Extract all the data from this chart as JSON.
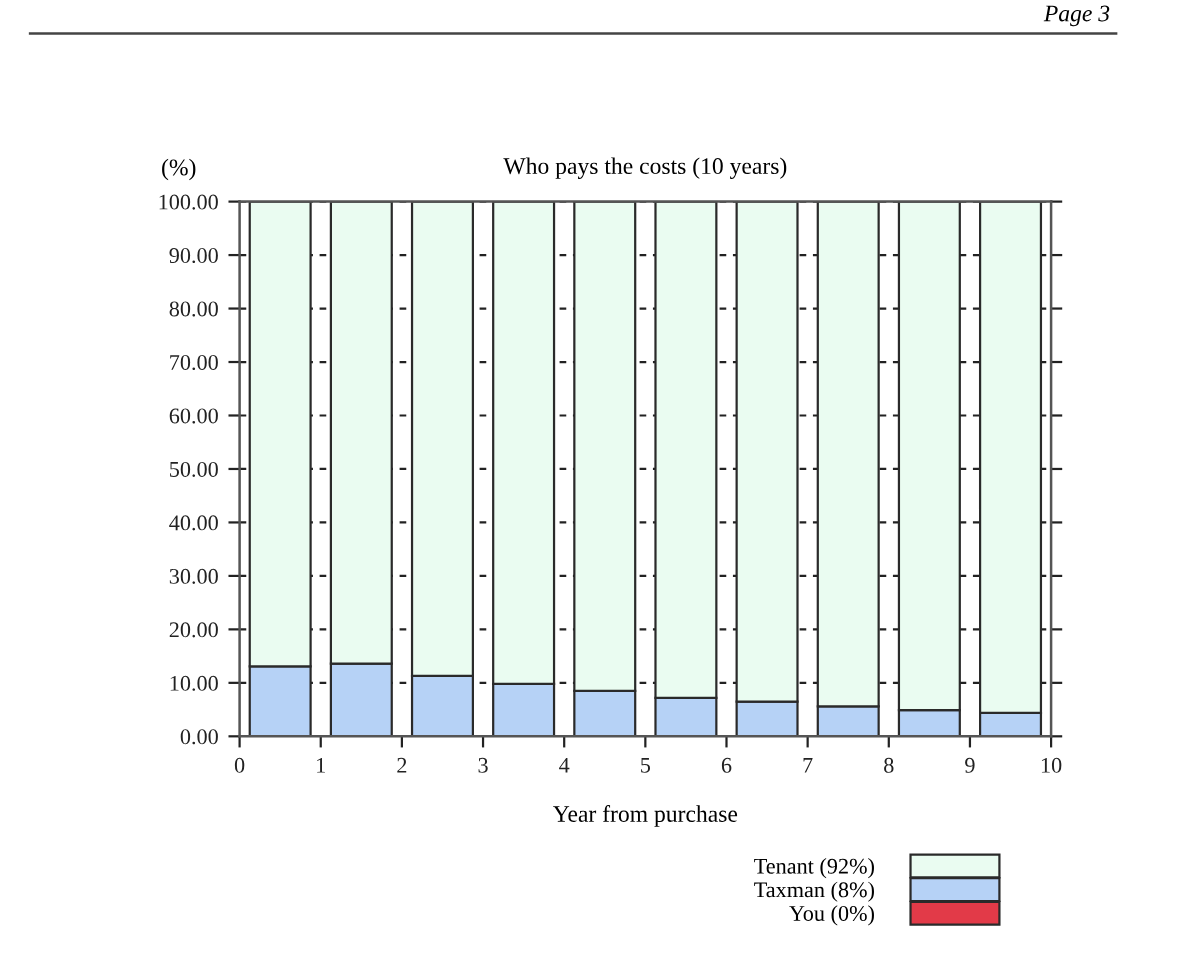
{
  "chart_data": {
    "type": "bar",
    "title": "Who pays the costs (10 years)",
    "xlabel": "Year from purchase",
    "ylabel": "(%)",
    "annotations": [
      "Page 3"
    ],
    "x": [
      0.5,
      1.5,
      2.5,
      3.5,
      4.5,
      5.5,
      6.5,
      7.5,
      8.5,
      9.5
    ],
    "stacked": true,
    "series": [
      {
        "name": "You (0%)",
        "color": "#e23a48",
        "values": [
          0,
          0,
          0,
          0,
          0,
          0,
          0,
          0,
          0,
          0
        ]
      },
      {
        "name": "Taxman (8%)",
        "color": "#b6d2f6",
        "values": [
          13.1,
          13.6,
          11.3,
          9.8,
          8.5,
          7.2,
          6.5,
          5.6,
          4.9,
          4.4
        ]
      },
      {
        "name": "Tenant (92%)",
        "color": "#eafcf1",
        "values": [
          86.9,
          86.4,
          88.7,
          90.2,
          91.5,
          92.8,
          93.5,
          94.4,
          95.1,
          95.6
        ]
      }
    ],
    "xlim": [
      0,
      10
    ],
    "xticks": [
      0,
      1,
      2,
      3,
      4,
      5,
      6,
      7,
      8,
      9,
      10
    ],
    "ylim": [
      0,
      100
    ],
    "yticks": [
      {
        "value": 0,
        "label": "0.00"
      },
      {
        "value": 10,
        "label": "10.00"
      },
      {
        "value": 20,
        "label": "20.00"
      },
      {
        "value": 30,
        "label": "30.00"
      },
      {
        "value": 40,
        "label": "40.00"
      },
      {
        "value": 50,
        "label": "50.00"
      },
      {
        "value": 60,
        "label": "60.00"
      },
      {
        "value": 70,
        "label": "70.00"
      },
      {
        "value": 80,
        "label": "80.00"
      },
      {
        "value": 90,
        "label": "90.00"
      },
      {
        "value": 100,
        "label": "100.00"
      }
    ],
    "grid": "y",
    "legend": "bottom right"
  }
}
